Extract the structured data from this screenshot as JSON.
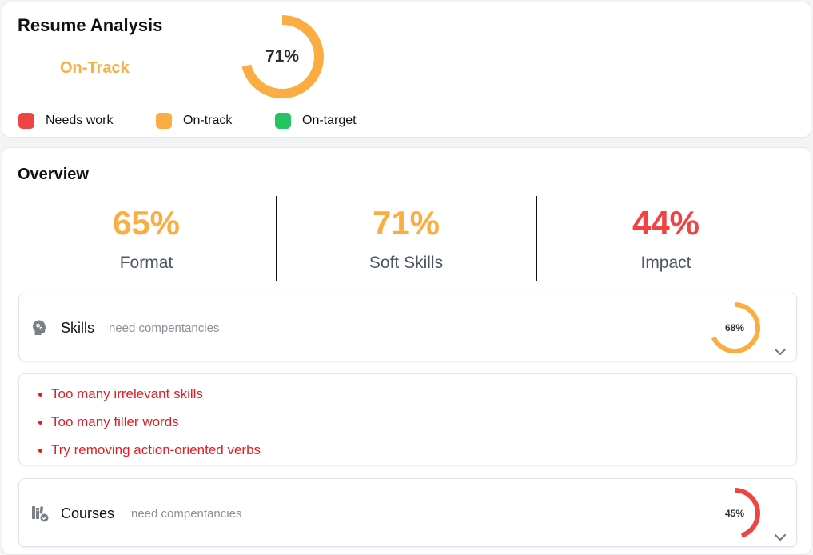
{
  "colors": {
    "needs_work": "#ef4444",
    "on_track": "#fbad41",
    "on_target": "#22c55e",
    "track": "#ffffff",
    "issue_text": "#e11d24"
  },
  "summary": {
    "title": "Resume Analysis",
    "status_label": "On-Track",
    "status_color": "#fbad41",
    "score_label": "71%",
    "score_fraction": 0.71
  },
  "legend": [
    {
      "label": "Needs work",
      "color": "#ef4444"
    },
    {
      "label": "On-track",
      "color": "#fbad41"
    },
    {
      "label": "On-target",
      "color": "#22c55e"
    }
  ],
  "overview": {
    "title": "Overview",
    "metrics": [
      {
        "value": "65%",
        "label": "Format",
        "color": "#fbad41"
      },
      {
        "value": "71%",
        "label": "Soft Skills",
        "color": "#fbad41"
      },
      {
        "value": "44%",
        "label": "Impact",
        "color": "#ef4444"
      }
    ]
  },
  "sections": {
    "skills": {
      "icon": "head-gears-icon",
      "name": "Skills",
      "note": "need compentancies",
      "score_label": "68%",
      "score_fraction": 0.68,
      "ring_color": "#fbad41",
      "issues": [
        "Too many irrelevant skills",
        "Too many filler words",
        "Try removing action-oriented verbs"
      ]
    },
    "courses": {
      "icon": "books-check-icon",
      "name": "Courses",
      "note": "need compentancies",
      "score_label": "45%",
      "score_fraction": 0.45,
      "ring_color": "#ef4444"
    }
  }
}
